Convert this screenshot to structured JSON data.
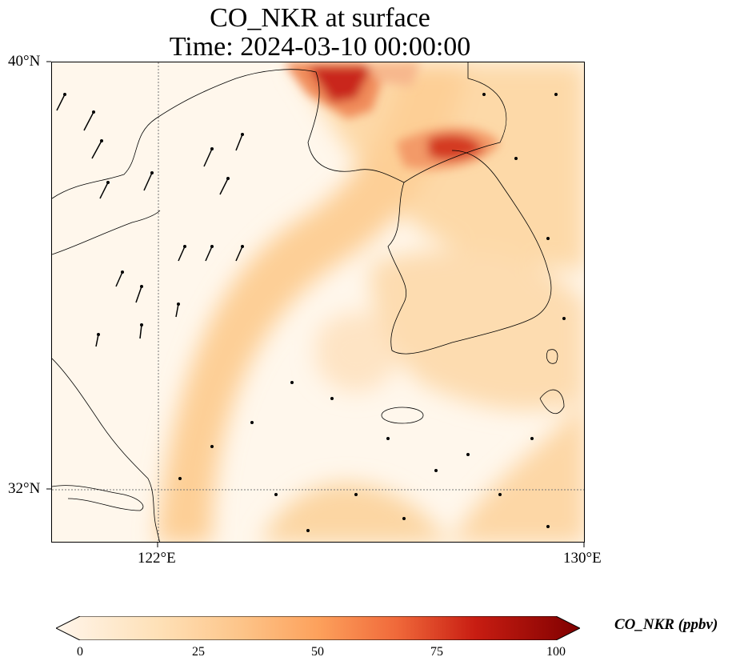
{
  "title": {
    "line1": "CO_NKR at surface",
    "line2": "Time: 2024-03-10 00:00:00"
  },
  "axes": {
    "lat_labels": [
      "40°N",
      "32°N"
    ],
    "lon_labels": [
      "122°E",
      "130°E"
    ]
  },
  "colorbar": {
    "label": "CO_NKR (ppbv)",
    "ticks": [
      "0",
      "25",
      "50",
      "75",
      "100"
    ],
    "range": [
      0,
      100
    ],
    "extend": "both",
    "colormap": [
      "#fff5eb",
      "#fdd49e",
      "#fdae6b",
      "#f16913",
      "#d7301f",
      "#7f0000"
    ]
  },
  "colors": {
    "coastline": "#000000",
    "gridline": "#777777",
    "vector": "#000000",
    "background": "#fff7ec"
  },
  "map": {
    "lon_range": [
      120,
      130
    ],
    "lat_range": [
      31,
      40
    ],
    "gridlines": {
      "lon": [
        122
      ],
      "lat": [
        32
      ]
    },
    "wind_vectors": "present"
  }
}
